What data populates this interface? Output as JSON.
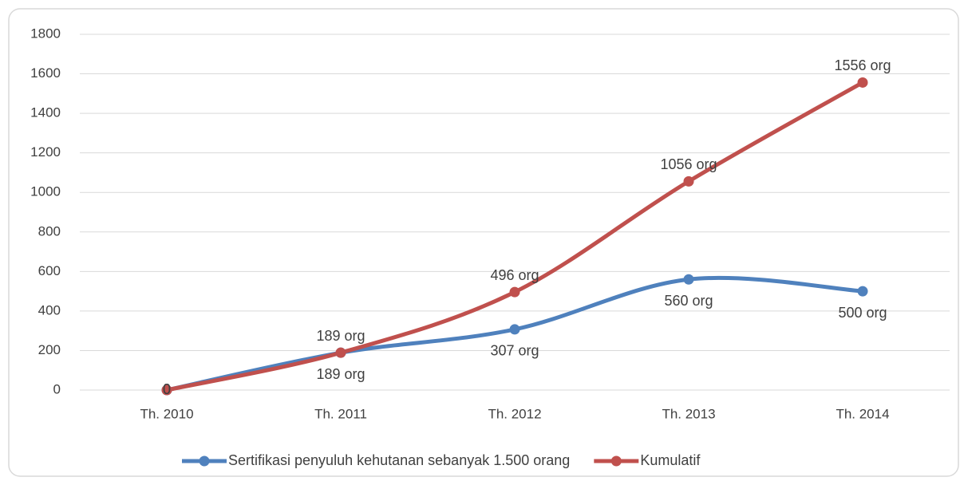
{
  "chart_data": {
    "type": "line",
    "categories": [
      "Th. 2010",
      "Th. 2011",
      "Th. 2012",
      "Th. 2013",
      "Th. 2014"
    ],
    "series": [
      {
        "name": "Sertifikasi penyuluh kehutanan sebanyak 1.500 orang",
        "color": "#4f81bd",
        "values": [
          0,
          189,
          307,
          560,
          500
        ],
        "value_labels": [
          "0",
          "189 org",
          "307 org",
          "560 org",
          "500 org"
        ]
      },
      {
        "name": "Kumulatif",
        "color": "#c0504d",
        "values": [
          0,
          189,
          496,
          1056,
          1556
        ],
        "value_labels": [
          "0",
          "189 org",
          "496 org",
          "1056 org",
          "1556 org"
        ]
      }
    ],
    "ylim": [
      0,
      1800
    ],
    "yticks": [
      0,
      200,
      400,
      600,
      800,
      1000,
      1200,
      1400,
      1600,
      1800
    ],
    "grid": true,
    "smooth": true,
    "legend": "bottom"
  }
}
